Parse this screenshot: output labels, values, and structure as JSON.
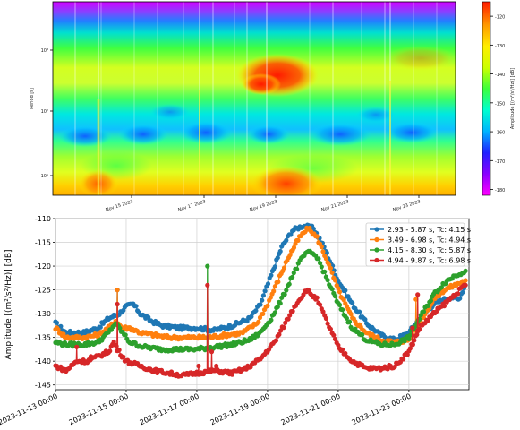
{
  "chart_data": [
    {
      "type": "heatmap",
      "ylabel": "Period [s]",
      "ytick_labels": [
        "10³",
        "10²",
        "10¹"
      ],
      "xtick_labels": [
        "Nov 15 2023",
        "Nov 17 2023",
        "Nov 19 2023",
        "Nov 21 2023",
        "Nov 23 2023"
      ],
      "colorbar": {
        "label": "Amplitude [(m²/s²/Hz)] [dB]",
        "range": [
          -182,
          -115
        ],
        "tick_labels": [
          "-120",
          "-130",
          "-140",
          "-150",
          "-160",
          "-170",
          "-180"
        ],
        "tick_values": [
          -120,
          -130,
          -140,
          -150,
          -160,
          -170,
          -180
        ],
        "colors": [
          "#ff00ff",
          "#8a00ff",
          "#2020ff",
          "#00b4ff",
          "#00ffd0",
          "#3cff3c",
          "#ccff00",
          "#ffee00",
          "#ff9900",
          "#ff1a00"
        ]
      }
    },
    {
      "type": "line",
      "ylabel": "Amplitude [(m²/s²/Hz)] [dB]",
      "ylim": [
        -146,
        -110
      ],
      "yticks": [
        -110,
        -115,
        -120,
        -125,
        -130,
        -135,
        -140,
        -145
      ],
      "xlim": [
        0,
        11.7
      ],
      "xticks": [
        0,
        2,
        4,
        6,
        8,
        10
      ],
      "xtick_labels": [
        "2023-11-13 00:00",
        "2023-11-15 00:00",
        "2023-11-17 00:00",
        "2023-11-19 00:00",
        "2023-11-21 00:00",
        "2023-11-23 00:00"
      ],
      "grid": true,
      "legend_position": "top-right",
      "series": [
        {
          "name": "2.93 - 5.87 s, Tc: 4.15 s",
          "color": "#1f77b4",
          "points": [
            [
              0,
              -132
            ],
            [
              0.3,
              -134
            ],
            [
              0.8,
              -134
            ],
            [
              1.2,
              -133
            ],
            [
              1.5,
              -131
            ],
            [
              1.8,
              -130
            ],
            [
              2.0,
              -128.5
            ],
            [
              2.2,
              -128
            ],
            [
              2.4,
              -130
            ],
            [
              2.7,
              -131.5
            ],
            [
              3.0,
              -132.5
            ],
            [
              3.5,
              -133
            ],
            [
              4.0,
              -133
            ],
            [
              4.5,
              -133.5
            ],
            [
              5.0,
              -132.5
            ],
            [
              5.5,
              -131
            ],
            [
              5.8,
              -128
            ],
            [
              6.1,
              -122
            ],
            [
              6.4,
              -116
            ],
            [
              6.7,
              -112.5
            ],
            [
              7.0,
              -111.5
            ],
            [
              7.3,
              -112
            ],
            [
              7.6,
              -116
            ],
            [
              8.0,
              -123
            ],
            [
              8.4,
              -128
            ],
            [
              8.8,
              -132
            ],
            [
              9.2,
              -134.5
            ],
            [
              9.6,
              -135.5
            ],
            [
              10.0,
              -134
            ],
            [
              10.3,
              -131
            ],
            [
              10.7,
              -128
            ],
            [
              11.0,
              -127
            ],
            [
              11.2,
              -126.5
            ],
            [
              11.4,
              -127
            ],
            [
              11.6,
              -124
            ]
          ]
        },
        {
          "name": "3.49 - 6.98 s, Tc: 4.94 s",
          "color": "#ff7f0e",
          "points": [
            [
              0,
              -133
            ],
            [
              0.3,
              -135
            ],
            [
              0.8,
              -135
            ],
            [
              1.2,
              -134.5
            ],
            [
              1.5,
              -133
            ],
            [
              1.7,
              -131.5
            ],
            [
              1.9,
              -133
            ],
            [
              2.1,
              -133
            ],
            [
              2.4,
              -134
            ],
            [
              2.8,
              -134.5
            ],
            [
              3.2,
              -135
            ],
            [
              3.8,
              -135
            ],
            [
              4.3,
              -135
            ],
            [
              4.8,
              -134.5
            ],
            [
              5.3,
              -134
            ],
            [
              5.7,
              -132
            ],
            [
              6.0,
              -128
            ],
            [
              6.3,
              -123
            ],
            [
              6.6,
              -118
            ],
            [
              6.9,
              -114
            ],
            [
              7.15,
              -112
            ],
            [
              7.4,
              -114
            ],
            [
              7.7,
              -119
            ],
            [
              8.0,
              -125
            ],
            [
              8.4,
              -131
            ],
            [
              8.8,
              -134
            ],
            [
              9.2,
              -135.5
            ],
            [
              9.6,
              -136
            ],
            [
              10.0,
              -135.5
            ],
            [
              10.3,
              -132
            ],
            [
              10.7,
              -127
            ],
            [
              11.0,
              -125
            ],
            [
              11.3,
              -124
            ],
            [
              11.6,
              -123
            ]
          ]
        },
        {
          "name": "4.15 - 8.30 s, Tc: 5.87 s",
          "color": "#2ca02c",
          "points": [
            [
              0,
              -136
            ],
            [
              0.3,
              -136.5
            ],
            [
              0.8,
              -136.5
            ],
            [
              1.2,
              -136
            ],
            [
              1.5,
              -134
            ],
            [
              1.7,
              -132
            ],
            [
              1.9,
              -134
            ],
            [
              2.1,
              -136
            ],
            [
              2.5,
              -137
            ],
            [
              3.0,
              -137.5
            ],
            [
              3.5,
              -137.5
            ],
            [
              4.0,
              -137.5
            ],
            [
              4.5,
              -137
            ],
            [
              5.0,
              -136.5
            ],
            [
              5.5,
              -135.5
            ],
            [
              5.8,
              -134
            ],
            [
              6.1,
              -131
            ],
            [
              6.4,
              -127
            ],
            [
              6.7,
              -122
            ],
            [
              7.0,
              -118
            ],
            [
              7.2,
              -117
            ],
            [
              7.4,
              -118
            ],
            [
              7.7,
              -123
            ],
            [
              8.0,
              -128
            ],
            [
              8.4,
              -133
            ],
            [
              8.8,
              -135.5
            ],
            [
              9.2,
              -136.5
            ],
            [
              9.6,
              -136.5
            ],
            [
              10.0,
              -135
            ],
            [
              10.3,
              -131
            ],
            [
              10.7,
              -126
            ],
            [
              11.0,
              -123.5
            ],
            [
              11.3,
              -122
            ],
            [
              11.6,
              -121
            ]
          ]
        },
        {
          "name": "4.94 - 9.87 s, Tc: 6.98 s",
          "color": "#d62728",
          "points": [
            [
              0,
              -141
            ],
            [
              0.3,
              -142
            ],
            [
              0.6,
              -140
            ],
            [
              0.9,
              -140
            ],
            [
              1.2,
              -139
            ],
            [
              1.5,
              -138
            ],
            [
              1.65,
              -136
            ],
            [
              1.8,
              -138
            ],
            [
              2.0,
              -140
            ],
            [
              2.4,
              -141
            ],
            [
              2.8,
              -142
            ],
            [
              3.2,
              -142.5
            ],
            [
              3.6,
              -143
            ],
            [
              4.0,
              -142.5
            ],
            [
              4.5,
              -142
            ],
            [
              5.0,
              -142.5
            ],
            [
              5.4,
              -141.5
            ],
            [
              5.8,
              -139.5
            ],
            [
              6.2,
              -136
            ],
            [
              6.5,
              -132
            ],
            [
              6.8,
              -128
            ],
            [
              7.1,
              -125
            ],
            [
              7.4,
              -127
            ],
            [
              7.7,
              -132
            ],
            [
              8.0,
              -137
            ],
            [
              8.4,
              -140
            ],
            [
              8.8,
              -141.5
            ],
            [
              9.2,
              -141.5
            ],
            [
              9.6,
              -141
            ],
            [
              10.0,
              -138
            ],
            [
              10.3,
              -133
            ],
            [
              10.7,
              -130
            ],
            [
              11.0,
              -128
            ],
            [
              11.3,
              -126
            ],
            [
              11.6,
              -124
            ]
          ]
        }
      ],
      "spikes": [
        {
          "series": 0,
          "x": 1.75,
          "y": -125
        },
        {
          "series": 1,
          "x": 1.75,
          "y": -125
        },
        {
          "series": 3,
          "x": 1.75,
          "y": -128
        },
        {
          "series": 3,
          "x": 0.6,
          "y": -137
        },
        {
          "series": 3,
          "x": 1.0,
          "y": -139
        },
        {
          "series": 2,
          "x": 3.95,
          "y": -137.5
        },
        {
          "series": 3,
          "x": 4.05,
          "y": -141
        },
        {
          "series": 2,
          "x": 4.3,
          "y": -120
        },
        {
          "series": 3,
          "x": 4.3,
          "y": -124
        },
        {
          "series": 3,
          "x": 4.42,
          "y": -138
        },
        {
          "series": 3,
          "x": 4.55,
          "y": -141
        },
        {
          "series": 3,
          "x": 10.1,
          "y": -133
        },
        {
          "series": 1,
          "x": 10.2,
          "y": -127
        },
        {
          "series": 3,
          "x": 10.25,
          "y": -126
        }
      ]
    }
  ]
}
